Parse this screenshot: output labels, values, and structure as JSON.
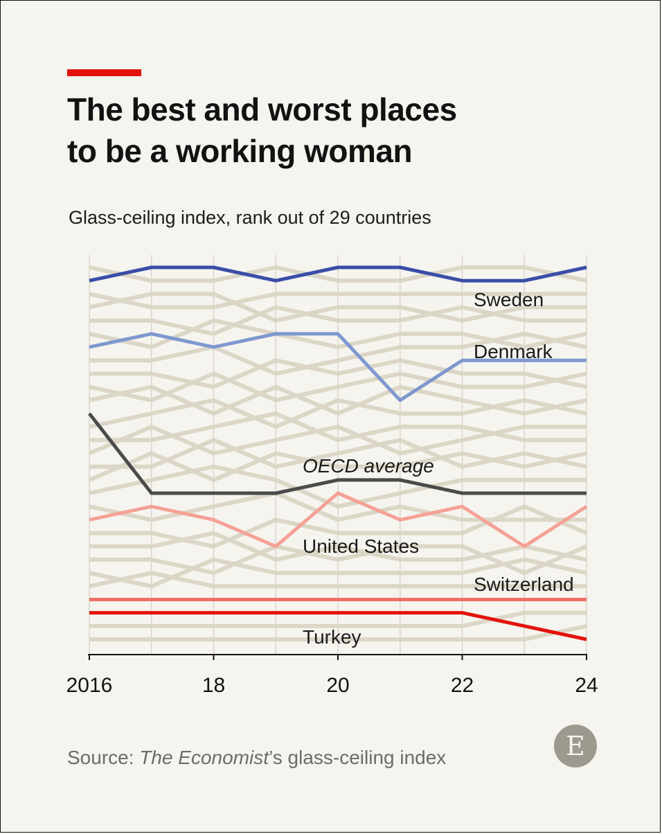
{
  "header": {
    "title_line1": "The best and worst places",
    "title_line2": "to be a working woman",
    "subtitle": "Glass-ceiling index, rank out of 29 countries"
  },
  "footer": {
    "source_prefix": "Source: ",
    "source_italic": "The Economist",
    "source_suffix": "’s glass-ceiling index",
    "logo_letter": "E"
  },
  "colors": {
    "background": "#f6f4ef",
    "accent_red": "#e3120b",
    "other_countries": "#dcd6c6",
    "gridline": "#d9d5cc",
    "axis": "#121212"
  },
  "chart_data": {
    "type": "line",
    "x": [
      2016,
      2017,
      2018,
      2019,
      2020,
      2021,
      2022,
      2023,
      2024
    ],
    "x_tick_values": [
      2016,
      2018,
      2020,
      2022,
      2024
    ],
    "x_tick_labels": [
      "2016",
      "18",
      "20",
      "22",
      "24"
    ],
    "ylim": [
      1,
      30
    ],
    "y_inverted": true,
    "grid": "vertical",
    "series": [
      {
        "name": "Sweden",
        "color": "#3a4da8",
        "width": 5,
        "values": [
          2,
          1,
          1,
          2,
          1,
          1,
          2,
          2,
          1
        ]
      },
      {
        "name": "Denmark",
        "color": "#7e98cf",
        "width": 5,
        "values": [
          7,
          6,
          7,
          6,
          6,
          11,
          8,
          8,
          8
        ]
      },
      {
        "name": "OECD average",
        "color": "#4a4a4a",
        "width": 5,
        "values": [
          12,
          18,
          18,
          18,
          17,
          17,
          18,
          18,
          18
        ]
      },
      {
        "name": "United States",
        "color": "#f5a196",
        "width": 5,
        "values": [
          20,
          19,
          20,
          22,
          18,
          20,
          19,
          22,
          19
        ]
      },
      {
        "name": "Switzerland",
        "color": "#f07066",
        "width": 5,
        "values": [
          26,
          26,
          26,
          26,
          26,
          26,
          26,
          26,
          26
        ]
      },
      {
        "name": "Turkey",
        "color": "#e3120b",
        "width": 5,
        "values": [
          27,
          27,
          27,
          27,
          27,
          27,
          27,
          28,
          29
        ]
      }
    ],
    "background_series": [
      [
        1,
        2,
        2,
        1,
        2,
        2,
        1,
        1,
        2
      ],
      [
        3,
        4,
        4,
        3,
        3,
        3,
        3,
        3,
        3
      ],
      [
        4,
        3,
        3,
        5,
        4,
        4,
        5,
        4,
        4
      ],
      [
        5,
        5,
        6,
        4,
        5,
        5,
        4,
        5,
        5
      ],
      [
        6,
        7,
        5,
        6,
        7,
        6,
        6,
        7,
        6
      ],
      [
        8,
        8,
        7,
        9,
        8,
        7,
        7,
        6,
        7
      ],
      [
        9,
        9,
        10,
        8,
        9,
        8,
        9,
        9,
        10
      ],
      [
        10,
        11,
        9,
        11,
        10,
        9,
        10,
        10,
        9
      ],
      [
        11,
        10,
        12,
        10,
        12,
        10,
        11,
        12,
        11
      ],
      [
        13,
        12,
        11,
        13,
        11,
        12,
        12,
        11,
        12
      ],
      [
        14,
        14,
        13,
        12,
        14,
        13,
        13,
        14,
        14
      ],
      [
        15,
        13,
        15,
        14,
        13,
        15,
        14,
        13,
        13
      ],
      [
        16,
        16,
        14,
        16,
        15,
        14,
        16,
        15,
        16
      ],
      [
        17,
        15,
        17,
        15,
        16,
        16,
        15,
        16,
        15
      ],
      [
        18,
        17,
        16,
        17,
        19,
        18,
        17,
        17,
        17
      ],
      [
        19,
        20,
        19,
        18,
        20,
        19,
        20,
        20,
        20
      ],
      [
        21,
        21,
        22,
        20,
        21,
        21,
        21,
        19,
        21
      ],
      [
        22,
        22,
        21,
        23,
        22,
        23,
        23,
        22,
        23
      ],
      [
        23,
        23,
        24,
        22,
        23,
        22,
        22,
        24,
        22
      ],
      [
        24,
        25,
        23,
        24,
        24,
        24,
        24,
        23,
        24
      ],
      [
        25,
        24,
        25,
        25,
        25,
        25,
        25,
        25,
        25
      ],
      [
        28,
        28,
        28,
        28,
        28,
        28,
        28,
        27,
        27
      ],
      [
        29,
        29,
        29,
        29,
        29,
        29,
        29,
        29,
        28
      ]
    ],
    "labels": [
      {
        "text": "Sweden",
        "style": "normal"
      },
      {
        "text": "Denmark",
        "style": "normal"
      },
      {
        "text": "OECD average",
        "style": "italic"
      },
      {
        "text": "United States",
        "style": "normal"
      },
      {
        "text": "Switzerland",
        "style": "normal"
      },
      {
        "text": "Turkey",
        "style": "normal"
      }
    ]
  }
}
